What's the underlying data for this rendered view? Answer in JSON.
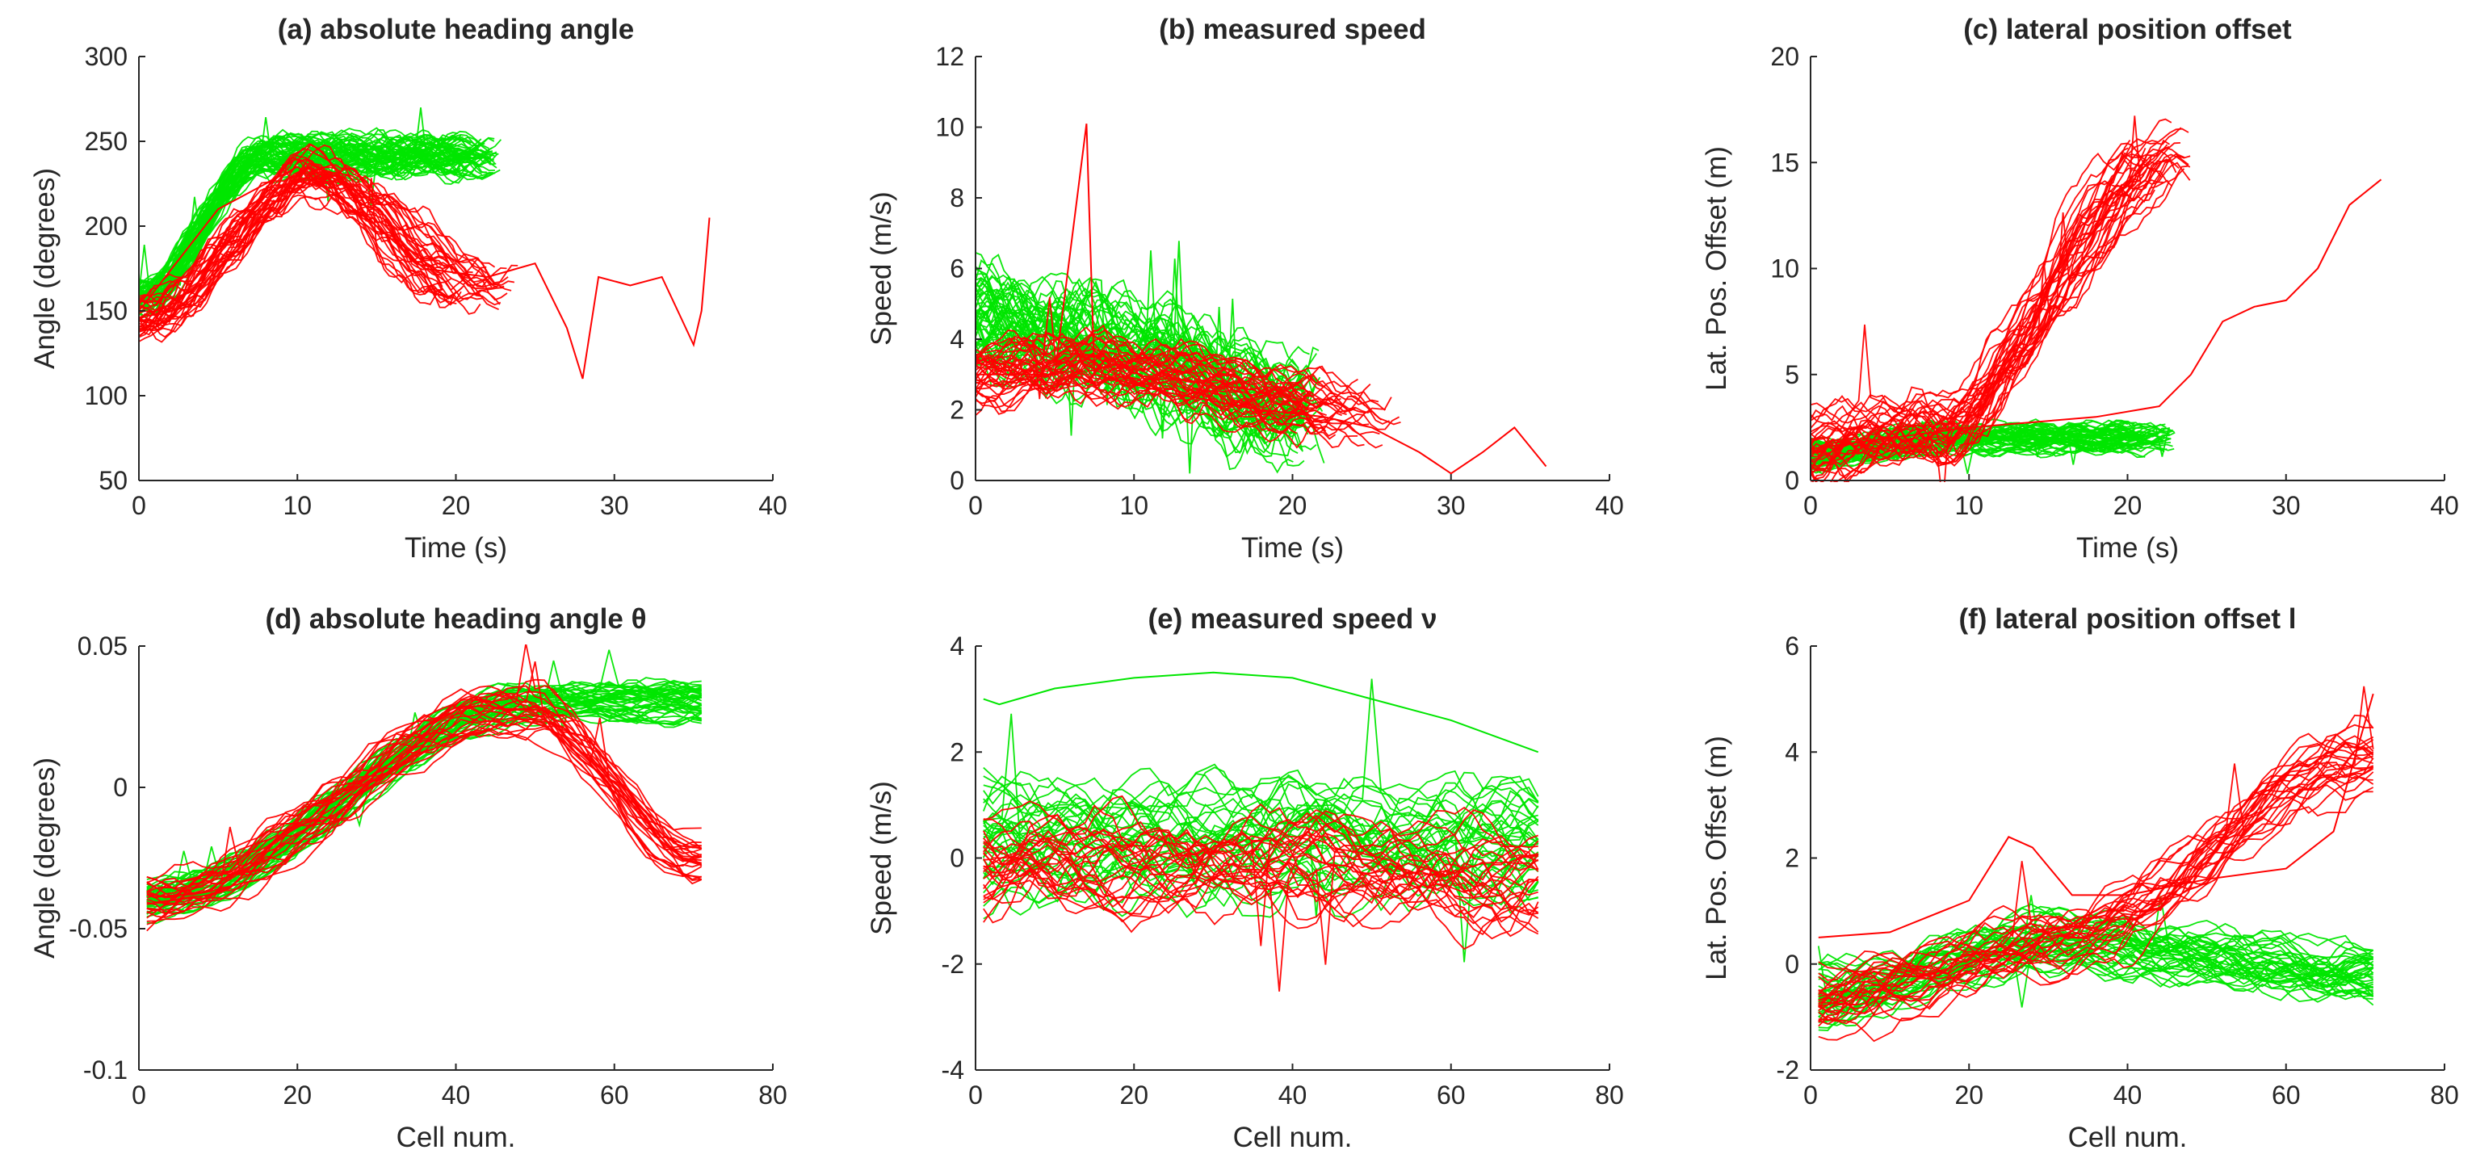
{
  "colors": {
    "failure": "#ff0000",
    "success": "#00e600",
    "axis": "#262626",
    "background": "#ffffff"
  },
  "legend": "none",
  "chart_data": [
    {
      "type": "line",
      "title": "(a) absolute heading angle",
      "xlabel": "Time (s)",
      "ylabel": "Angle (degrees)",
      "xlim": [
        0,
        40
      ],
      "ylim": [
        50,
        300
      ],
      "xticks": [
        "0",
        "10",
        "20",
        "30",
        "40"
      ],
      "yticks": [
        "50",
        "100",
        "150",
        "200",
        "250",
        "300"
      ],
      "series": [
        {
          "name": "green",
          "color": "#00e600",
          "n_traces": 60,
          "start_y": 155,
          "peak_x": 8,
          "peak_y": 240,
          "end_x": 20,
          "end_y": 240,
          "jitter": 12,
          "end_x_max": 23
        },
        {
          "name": "red",
          "color": "#ff0000",
          "n_traces": 35,
          "start_y": 145,
          "peak_x": 11,
          "peak_y": 230,
          "end_x": 19,
          "end_y": 165,
          "jitter": 14,
          "end_x_max": 24
        },
        {
          "name": "red-long",
          "color": "#ff0000",
          "points": [
            [
              0,
              150
            ],
            [
              5,
              210
            ],
            [
              10,
              235
            ],
            [
              15,
              200
            ],
            [
              18,
              175
            ],
            [
              22,
              170
            ],
            [
              25,
              178
            ],
            [
              27,
              140
            ],
            [
              28,
              110
            ],
            [
              29,
              170
            ],
            [
              31,
              165
            ],
            [
              33,
              170
            ],
            [
              34,
              150
            ],
            [
              35,
              130
            ],
            [
              35.5,
              150
            ],
            [
              36,
              205
            ]
          ]
        }
      ]
    },
    {
      "type": "line",
      "title": "(b) measured speed",
      "xlabel": "Time (s)",
      "ylabel": "Speed (m/s)",
      "xlim": [
        0,
        40
      ],
      "ylim": [
        0,
        12
      ],
      "xticks": [
        "0",
        "10",
        "20",
        "30",
        "40"
      ],
      "yticks": [
        "0",
        "2",
        "4",
        "6",
        "8",
        "10",
        "12"
      ],
      "series": [
        {
          "name": "green",
          "color": "#00e600",
          "n_traces": 55,
          "start_y": 4.5,
          "peak_x": 6,
          "peak_y": 4.0,
          "end_x": 20,
          "end_y": 2.0,
          "jitter": 1.4,
          "end_x_max": 22
        },
        {
          "name": "red",
          "color": "#ff0000",
          "n_traces": 35,
          "start_y": 3.0,
          "peak_x": 8,
          "peak_y": 3.2,
          "end_x": 20,
          "end_y": 2.0,
          "jitter": 0.8,
          "end_x_max": 27
        },
        {
          "name": "red-long",
          "color": "#ff0000",
          "points": [
            [
              0,
              3
            ],
            [
              5,
              3
            ],
            [
              7,
              10.1
            ],
            [
              7.5,
              3
            ],
            [
              12,
              2.5
            ],
            [
              18,
              2
            ],
            [
              22,
              1.8
            ],
            [
              25,
              1.5
            ],
            [
              28,
              0.8
            ],
            [
              30,
              0.2
            ],
            [
              32,
              0.8
            ],
            [
              34,
              1.5
            ],
            [
              36,
              0.4
            ]
          ]
        }
      ]
    },
    {
      "type": "line",
      "title": "(c) lateral position offset",
      "xlabel": "Time (s)",
      "ylabel": "Lat. Pos. Offset (m)",
      "xlim": [
        0,
        40
      ],
      "ylim": [
        0,
        20
      ],
      "xticks": [
        "0",
        "10",
        "20",
        "30",
        "40"
      ],
      "yticks": [
        "0",
        "5",
        "10",
        "15",
        "20"
      ],
      "series": [
        {
          "name": "green",
          "color": "#00e600",
          "n_traces": 55,
          "start_y": 1.2,
          "peak_x": 8,
          "peak_y": 2.0,
          "end_x": 20,
          "end_y": 2.0,
          "jitter": 0.6,
          "end_x_max": 23
        },
        {
          "name": "red",
          "color": "#ff0000",
          "n_traces": 35,
          "start_y": 1.5,
          "peak_x": 8,
          "peak_y": 2.5,
          "end_x": 20,
          "end_y": 15.0,
          "jitter": 1.5,
          "end_x_max": 24
        },
        {
          "name": "red-long",
          "color": "#ff0000",
          "points": [
            [
              0,
              1.5
            ],
            [
              10,
              2.5
            ],
            [
              18,
              3
            ],
            [
              22,
              3.5
            ],
            [
              24,
              5
            ],
            [
              26,
              7.5
            ],
            [
              28,
              8.2
            ],
            [
              30,
              8.5
            ],
            [
              32,
              10
            ],
            [
              34,
              13
            ],
            [
              36,
              14.2
            ]
          ]
        }
      ]
    },
    {
      "type": "line",
      "title": "(d) absolute heading angle θ",
      "xlabel": "Cell num.",
      "ylabel": "Angle (degrees)",
      "xlim": [
        0,
        80
      ],
      "ylim": [
        -0.1,
        0.05
      ],
      "xticks": [
        "0",
        "20",
        "40",
        "60",
        "80"
      ],
      "yticks": [
        "-0.1",
        "-0.05",
        "0",
        "0.05"
      ],
      "series": [
        {
          "name": "green",
          "color": "#00e600",
          "n_traces": 45,
          "start_y": -0.04,
          "peak_x": 50,
          "peak_y": 0.03,
          "end_x": 71,
          "end_y": 0.03,
          "jitter": 0.006,
          "end_x_max": 71
        },
        {
          "name": "red",
          "color": "#ff0000",
          "n_traces": 25,
          "start_y": -0.04,
          "peak_x": 48,
          "peak_y": 0.028,
          "end_x": 71,
          "end_y": -0.025,
          "jitter": 0.008,
          "end_x_max": 71
        }
      ]
    },
    {
      "type": "line",
      "title": "(e) measured speed ν",
      "xlabel": "Cell num.",
      "ylabel": "Speed (m/s)",
      "xlim": [
        0,
        80
      ],
      "ylim": [
        -4,
        4
      ],
      "xticks": [
        "0",
        "20",
        "40",
        "60",
        "80"
      ],
      "yticks": [
        "-4",
        "-2",
        "0",
        "2",
        "4"
      ],
      "series": [
        {
          "name": "green",
          "color": "#00e600",
          "n_traces": 35,
          "start_y": 0.2,
          "peak_x": 35,
          "peak_y": 0.3,
          "end_x": 71,
          "end_y": 0.2,
          "jitter": 1.0,
          "end_x_max": 71
        },
        {
          "name": "red",
          "color": "#ff0000",
          "n_traces": 25,
          "start_y": -0.2,
          "peak_x": 35,
          "peak_y": -0.1,
          "end_x": 71,
          "end_y": -0.5,
          "jitter": 0.9,
          "end_x_max": 71
        },
        {
          "name": "green-top",
          "color": "#00e600",
          "points": [
            [
              1,
              3.0
            ],
            [
              3,
              2.9
            ],
            [
              10,
              3.2
            ],
            [
              20,
              3.4
            ],
            [
              30,
              3.5
            ],
            [
              40,
              3.4
            ],
            [
              50,
              3.0
            ],
            [
              60,
              2.6
            ],
            [
              71,
              2.0
            ]
          ]
        }
      ]
    },
    {
      "type": "line",
      "title": "(f) lateral position offset l",
      "xlabel": "Cell num.",
      "ylabel": "Lat. Pos. Offset (m)",
      "xlim": [
        0,
        80
      ],
      "ylim": [
        -2,
        6
      ],
      "xticks": [
        "0",
        "20",
        "40",
        "60",
        "80"
      ],
      "yticks": [
        "-2",
        "0",
        "2",
        "4",
        "6"
      ],
      "series": [
        {
          "name": "green",
          "color": "#00e600",
          "n_traces": 40,
          "start_y": -0.6,
          "peak_x": 30,
          "peak_y": 0.4,
          "end_x": 71,
          "end_y": -0.2,
          "jitter": 0.5,
          "end_x_max": 71
        },
        {
          "name": "red",
          "color": "#ff0000",
          "n_traces": 25,
          "start_y": -0.8,
          "peak_x": 30,
          "peak_y": 0.3,
          "end_x": 71,
          "end_y": 3.8,
          "jitter": 0.6,
          "end_x_max": 71
        },
        {
          "name": "red-hump",
          "color": "#ff0000",
          "points": [
            [
              1,
              0.5
            ],
            [
              10,
              0.6
            ],
            [
              20,
              1.2
            ],
            [
              25,
              2.4
            ],
            [
              28,
              2.2
            ],
            [
              33,
              1.3
            ],
            [
              40,
              1.3
            ],
            [
              50,
              1.6
            ],
            [
              60,
              1.8
            ],
            [
              66,
              2.5
            ],
            [
              71,
              5.1
            ]
          ]
        }
      ]
    }
  ]
}
